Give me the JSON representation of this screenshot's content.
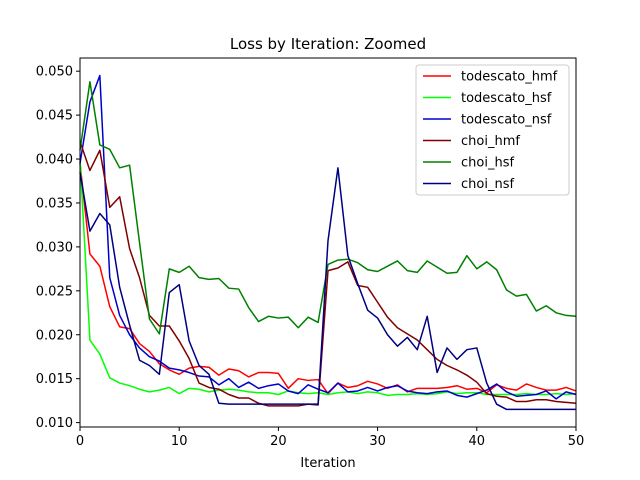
{
  "chart_data": {
    "type": "line",
    "title": "Loss by Iteration: Zoomed",
    "xlabel": "Iteration",
    "ylabel": "",
    "xlim": [
      0,
      50
    ],
    "ylim": [
      0.0095,
      0.0515
    ],
    "xticks": [
      0,
      10,
      20,
      30,
      40,
      50
    ],
    "yticks": [
      0.01,
      0.015,
      0.02,
      0.025,
      0.03,
      0.035,
      0.04,
      0.045,
      0.05
    ],
    "ytick_labels": [
      "0.010",
      "0.015",
      "0.020",
      "0.025",
      "0.030",
      "0.035",
      "0.040",
      "0.045",
      "0.050"
    ],
    "grid": false,
    "legend_position": "upper-right",
    "x": [
      0,
      1,
      2,
      3,
      4,
      5,
      6,
      7,
      8,
      9,
      10,
      11,
      12,
      13,
      14,
      15,
      16,
      17,
      18,
      19,
      20,
      21,
      22,
      23,
      24,
      25,
      26,
      27,
      28,
      29,
      30,
      31,
      32,
      33,
      34,
      35,
      36,
      37,
      38,
      39,
      40,
      41,
      42,
      43,
      44,
      45,
      46,
      47,
      48,
      49,
      50
    ],
    "series": [
      {
        "name": "todescato_hmf",
        "color": "#ff0000",
        "values": [
          0.0395,
          0.0292,
          0.0278,
          0.0232,
          0.0209,
          0.0207,
          0.019,
          0.0181,
          0.0167,
          0.016,
          0.0155,
          0.0162,
          0.0164,
          0.0163,
          0.0154,
          0.0161,
          0.0159,
          0.0152,
          0.0157,
          0.0157,
          0.0156,
          0.0139,
          0.015,
          0.0148,
          0.0149,
          0.0133,
          0.0145,
          0.014,
          0.0142,
          0.0147,
          0.0144,
          0.0139,
          0.0143,
          0.0135,
          0.0139,
          0.0139,
          0.0139,
          0.014,
          0.0142,
          0.0138,
          0.0139,
          0.0134,
          0.0143,
          0.0139,
          0.0137,
          0.0144,
          0.014,
          0.0137,
          0.0137,
          0.014,
          0.0136
        ]
      },
      {
        "name": "todescato_hsf",
        "color": "#00ff00",
        "values": [
          0.04,
          0.0194,
          0.0178,
          0.0151,
          0.0145,
          0.0142,
          0.0138,
          0.0135,
          0.0137,
          0.014,
          0.0133,
          0.0139,
          0.0138,
          0.0135,
          0.0137,
          0.0138,
          0.0137,
          0.0135,
          0.0134,
          0.0134,
          0.0132,
          0.0136,
          0.0134,
          0.0133,
          0.0134,
          0.0132,
          0.0134,
          0.0135,
          0.0133,
          0.0135,
          0.0134,
          0.0131,
          0.0132,
          0.0132,
          0.0133,
          0.0132,
          0.0133,
          0.0135,
          0.0133,
          0.0134,
          0.0134,
          0.0132,
          0.0132,
          0.0132,
          0.0132,
          0.0133,
          0.0132,
          0.0132,
          0.0133,
          0.0132,
          0.0133
        ]
      },
      {
        "name": "todescato_nsf",
        "color": "#0000cc",
        "values": [
          0.0395,
          0.0465,
          0.0495,
          0.0265,
          0.0222,
          0.02,
          0.0185,
          0.0175,
          0.017,
          0.0162,
          0.016,
          0.0157,
          0.0153,
          0.0152,
          0.0143,
          0.015,
          0.014,
          0.0146,
          0.0139,
          0.0142,
          0.0144,
          0.0136,
          0.0133,
          0.0143,
          0.0138,
          0.0134,
          0.0145,
          0.0135,
          0.0136,
          0.014,
          0.0136,
          0.014,
          0.0142,
          0.0136,
          0.0134,
          0.0133,
          0.0135,
          0.0136,
          0.0131,
          0.0129,
          0.0133,
          0.0137,
          0.0144,
          0.0135,
          0.013,
          0.0131,
          0.0132,
          0.0136,
          0.0127,
          0.0135,
          0.0132
        ]
      },
      {
        "name": "choi_hmf",
        "color": "#800000",
        "values": [
          0.042,
          0.0387,
          0.041,
          0.0345,
          0.0357,
          0.0298,
          0.0265,
          0.0222,
          0.021,
          0.021,
          0.0193,
          0.0173,
          0.0145,
          0.014,
          0.0138,
          0.0132,
          0.0128,
          0.0128,
          0.0122,
          0.0119,
          0.0119,
          0.0119,
          0.0119,
          0.0121,
          0.012,
          0.0273,
          0.0276,
          0.0283,
          0.0256,
          0.0254,
          0.0237,
          0.022,
          0.0208,
          0.0201,
          0.0194,
          0.0183,
          0.0172,
          0.0165,
          0.016,
          0.0154,
          0.0146,
          0.0133,
          0.013,
          0.0129,
          0.0124,
          0.0124,
          0.0126,
          0.0126,
          0.0124,
          0.0123,
          0.0122
        ]
      },
      {
        "name": "choi_hsf",
        "color": "#008000",
        "values": [
          0.041,
          0.0488,
          0.0416,
          0.0411,
          0.039,
          0.0393,
          0.0305,
          0.0218,
          0.0201,
          0.0275,
          0.0271,
          0.0278,
          0.0265,
          0.0263,
          0.0264,
          0.0253,
          0.0252,
          0.0231,
          0.0215,
          0.0221,
          0.0219,
          0.022,
          0.0208,
          0.022,
          0.0214,
          0.028,
          0.0285,
          0.0286,
          0.0282,
          0.0274,
          0.0272,
          0.0278,
          0.0284,
          0.0273,
          0.0271,
          0.0284,
          0.0277,
          0.027,
          0.0271,
          0.029,
          0.0275,
          0.0283,
          0.0274,
          0.0251,
          0.0244,
          0.0246,
          0.0227,
          0.0233,
          0.0225,
          0.0222,
          0.0221
        ]
      },
      {
        "name": "choi_nsf",
        "color": "#000080",
        "values": [
          0.0385,
          0.0318,
          0.0338,
          0.0325,
          0.0254,
          0.0211,
          0.0171,
          0.0165,
          0.0155,
          0.0248,
          0.0257,
          0.0193,
          0.0165,
          0.0155,
          0.0122,
          0.0121,
          0.0121,
          0.0121,
          0.0121,
          0.0121,
          0.0121,
          0.0121,
          0.0121,
          0.0121,
          0.0121,
          0.0307,
          0.039,
          0.029,
          0.0258,
          0.0228,
          0.0219,
          0.02,
          0.0187,
          0.0197,
          0.0183,
          0.0221,
          0.0157,
          0.0185,
          0.0172,
          0.0183,
          0.0185,
          0.0145,
          0.0121,
          0.0115,
          0.0115,
          0.0115,
          0.0115,
          0.0115,
          0.0115,
          0.0115,
          0.0115
        ]
      }
    ]
  }
}
